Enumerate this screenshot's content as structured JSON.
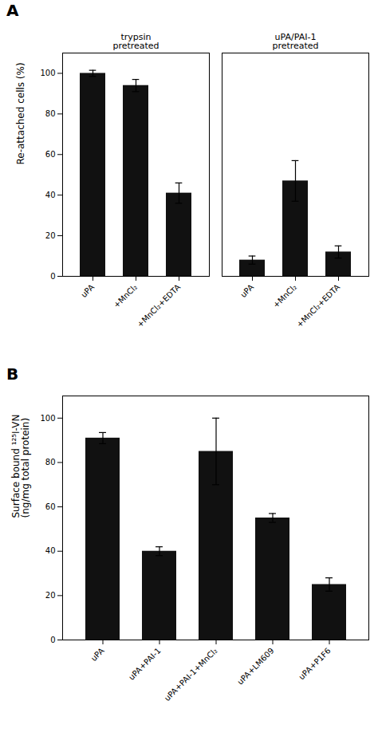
{
  "chart_data": [
    {
      "type": "bar",
      "title": "A",
      "ylabel": "Re-attached cells (%)",
      "groups": [
        {
          "label": "trypsin\npretreated",
          "categories": [
            "uPA",
            "+MnCl₂",
            "+MnCl₂+EDTA"
          ],
          "values": [
            100,
            94,
            41
          ],
          "errors": [
            1.5,
            3,
            5
          ]
        },
        {
          "label": "uPA/PAI-1\npretreated",
          "categories": [
            "uPA",
            "+MnCl₂",
            "+MnCl₂+EDTA"
          ],
          "values": [
            8,
            47,
            12
          ],
          "errors": [
            2,
            10,
            3
          ]
        }
      ],
      "color": "#111111",
      "ylim": [
        0,
        110
      ],
      "yticks": [
        0,
        20,
        40,
        60,
        80,
        100
      ],
      "grid": false
    },
    {
      "type": "bar",
      "title": "B",
      "ylabel": "Surface bound ¹²⁵I-VN\n(ng/mg total protein)",
      "categories": [
        "uPA",
        "uPA+PAI-1",
        "uPA+PAI-1+MnCl₂",
        "uPA+LM609",
        "uPA+P1F6"
      ],
      "values": [
        91,
        40,
        85,
        55,
        25
      ],
      "errors": [
        2.5,
        2,
        15,
        2,
        3
      ],
      "color": "#111111",
      "ylim": [
        0,
        110
      ],
      "yticks": [
        0,
        20,
        40,
        60,
        80,
        100
      ],
      "grid": false
    }
  ]
}
